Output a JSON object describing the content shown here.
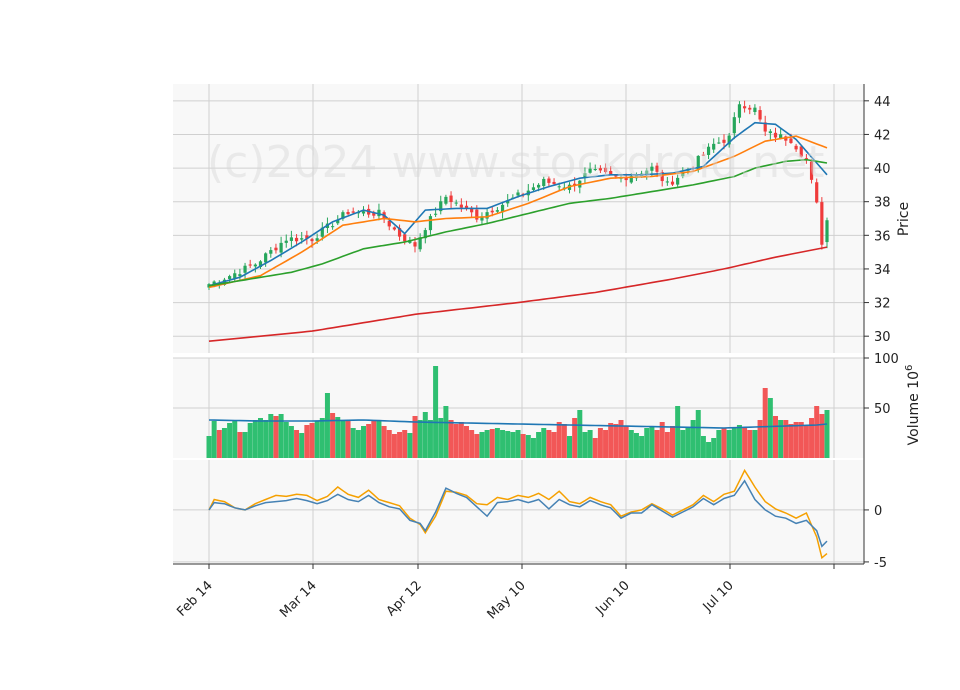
{
  "watermark": "(c)2024 www.stockdroid.net",
  "chart_data": {
    "type": "candlestick",
    "x_ticks": [
      "Feb 14",
      "Mar 14",
      "Apr 12",
      "May 10",
      "Jun 10",
      "Jul 10"
    ],
    "price_panel": {
      "ylabel": "Price",
      "ylim": [
        29.0,
        45.0
      ],
      "yticks": [
        30,
        32,
        34,
        36,
        38,
        40,
        42,
        44
      ],
      "anchors": [
        {
          "t": 0,
          "p": 33.1
        },
        {
          "t": 4,
          "p": 33.6
        },
        {
          "t": 9,
          "p": 34.3
        },
        {
          "t": 15,
          "p": 35.8
        },
        {
          "t": 20,
          "p": 35.8
        },
        {
          "t": 27,
          "p": 37.4
        },
        {
          "t": 33,
          "p": 37.3
        },
        {
          "t": 37,
          "p": 36.0
        },
        {
          "t": 40,
          "p": 35.4
        },
        {
          "t": 42,
          "p": 36.5
        },
        {
          "t": 46,
          "p": 38.3
        },
        {
          "t": 52,
          "p": 37.1
        },
        {
          "t": 58,
          "p": 38.0
        },
        {
          "t": 65,
          "p": 39.2
        },
        {
          "t": 70,
          "p": 38.9
        },
        {
          "t": 74,
          "p": 39.8
        },
        {
          "t": 80,
          "p": 39.4
        },
        {
          "t": 86,
          "p": 40.0
        },
        {
          "t": 89,
          "p": 39.0
        },
        {
          "t": 94,
          "p": 40.2
        },
        {
          "t": 98,
          "p": 41.4
        },
        {
          "t": 101,
          "p": 41.8
        },
        {
          "t": 103,
          "p": 43.9
        },
        {
          "t": 106,
          "p": 43.5
        },
        {
          "t": 108,
          "p": 42.1
        },
        {
          "t": 113,
          "p": 41.7
        },
        {
          "t": 116,
          "p": 40.5
        },
        {
          "t": 118,
          "p": 37.8
        },
        {
          "t": 119,
          "p": 35.6
        },
        {
          "t": 120,
          "p": 36.9
        }
      ],
      "moving_averages": [
        {
          "color": "#1f77b4",
          "points": [
            [
              0,
              33.0
            ],
            [
              6,
              33.5
            ],
            [
              12,
              34.5
            ],
            [
              18,
              35.6
            ],
            [
              24,
              36.8
            ],
            [
              30,
              37.5
            ],
            [
              34,
              37.2
            ],
            [
              38,
              36.1
            ],
            [
              42,
              37.5
            ],
            [
              48,
              37.6
            ],
            [
              54,
              37.6
            ],
            [
              60,
              38.3
            ],
            [
              66,
              38.9
            ],
            [
              72,
              39.4
            ],
            [
              78,
              39.6
            ],
            [
              84,
              39.6
            ],
            [
              90,
              39.7
            ],
            [
              96,
              40.1
            ],
            [
              102,
              41.8
            ],
            [
              106,
              42.7
            ],
            [
              110,
              42.6
            ],
            [
              114,
              41.7
            ],
            [
              118,
              40.3
            ],
            [
              120,
              39.6
            ]
          ]
        },
        {
          "color": "#ff7f0e",
          "points": [
            [
              0,
              32.9
            ],
            [
              10,
              33.6
            ],
            [
              18,
              35.0
            ],
            [
              26,
              36.6
            ],
            [
              34,
              37.0
            ],
            [
              40,
              36.8
            ],
            [
              46,
              37.0
            ],
            [
              54,
              37.1
            ],
            [
              62,
              37.9
            ],
            [
              70,
              38.9
            ],
            [
              78,
              39.4
            ],
            [
              86,
              39.5
            ],
            [
              94,
              39.8
            ],
            [
              102,
              40.7
            ],
            [
              108,
              41.6
            ],
            [
              114,
              41.9
            ],
            [
              120,
              41.2
            ]
          ]
        },
        {
          "color": "#2ca02c",
          "points": [
            [
              0,
              33.0
            ],
            [
              8,
              33.4
            ],
            [
              16,
              33.8
            ],
            [
              22,
              34.3
            ],
            [
              30,
              35.2
            ],
            [
              38,
              35.6
            ],
            [
              46,
              36.2
            ],
            [
              54,
              36.7
            ],
            [
              62,
              37.3
            ],
            [
              70,
              37.9
            ],
            [
              78,
              38.2
            ],
            [
              86,
              38.6
            ],
            [
              94,
              39.0
            ],
            [
              102,
              39.5
            ],
            [
              106,
              40.0
            ],
            [
              112,
              40.4
            ],
            [
              116,
              40.5
            ],
            [
              120,
              40.3
            ]
          ]
        },
        {
          "color": "#d62728",
          "points": [
            [
              0,
              29.7
            ],
            [
              20,
              30.3
            ],
            [
              40,
              31.3
            ],
            [
              60,
              32.0
            ],
            [
              75,
              32.6
            ],
            [
              90,
              33.4
            ],
            [
              100,
              34.0
            ],
            [
              110,
              34.7
            ],
            [
              120,
              35.3
            ]
          ]
        }
      ]
    },
    "volume_panel": {
      "ylabel": "Volume  10^6",
      "ylim": [
        0,
        100
      ],
      "yticks": [
        50,
        100
      ],
      "volumes": [
        22,
        37,
        28,
        30,
        35,
        38,
        26,
        26,
        35,
        38,
        40,
        38,
        44,
        42,
        44,
        36,
        32,
        28,
        25,
        33,
        35,
        37,
        40,
        65,
        45,
        41,
        37,
        37,
        30,
        28,
        32,
        34,
        38,
        37,
        32,
        28,
        24,
        26,
        28,
        25,
        42,
        38,
        46,
        38,
        92,
        40,
        52,
        38,
        34,
        36,
        32,
        28,
        24,
        26,
        28,
        29,
        30,
        28,
        27,
        26,
        28,
        24,
        23,
        20,
        26,
        30,
        28,
        26,
        36,
        34,
        22,
        40,
        48,
        26,
        28,
        20,
        30,
        28,
        35,
        34,
        38,
        32,
        28,
        25,
        22,
        30,
        32,
        28,
        36,
        26,
        32,
        52,
        28,
        30,
        38,
        48,
        22,
        16,
        20,
        28,
        30,
        28,
        31,
        33,
        30,
        28,
        28,
        38,
        70,
        60,
        42,
        38,
        38,
        34,
        36,
        36,
        32,
        40,
        52,
        44,
        48,
        60,
        70,
        70,
        70,
        25
      ],
      "volume_ma": {
        "color": "#1f77b4",
        "points": [
          [
            0,
            38
          ],
          [
            10,
            37
          ],
          [
            20,
            37
          ],
          [
            30,
            38
          ],
          [
            40,
            36
          ],
          [
            50,
            35
          ],
          [
            60,
            34
          ],
          [
            70,
            33
          ],
          [
            80,
            32
          ],
          [
            90,
            31
          ],
          [
            100,
            30
          ],
          [
            106,
            31
          ],
          [
            112,
            32
          ],
          [
            118,
            33
          ],
          [
            120,
            34
          ]
        ]
      }
    },
    "oscillator_panel": {
      "yticks": [
        -5,
        0
      ],
      "ylim": [
        -5.2,
        4.8
      ],
      "lines": [
        {
          "color": "#f5a000",
          "points": [
            [
              0,
              0.0
            ],
            [
              1,
              1.0
            ],
            [
              3,
              0.8
            ],
            [
              5,
              0.2
            ],
            [
              7,
              0.0
            ],
            [
              9,
              0.6
            ],
            [
              11,
              1.0
            ],
            [
              13,
              1.4
            ],
            [
              15,
              1.3
            ],
            [
              17,
              1.5
            ],
            [
              19,
              1.4
            ],
            [
              21,
              0.9
            ],
            [
              23,
              1.3
            ],
            [
              25,
              2.2
            ],
            [
              27,
              1.5
            ],
            [
              29,
              1.2
            ],
            [
              31,
              1.9
            ],
            [
              33,
              1.0
            ],
            [
              35,
              0.7
            ],
            [
              37,
              0.4
            ],
            [
              39,
              -0.8
            ],
            [
              41,
              -1.4
            ],
            [
              42,
              -2.2
            ],
            [
              44,
              -0.6
            ],
            [
              46,
              1.8
            ],
            [
              48,
              1.7
            ],
            [
              50,
              1.4
            ],
            [
              52,
              0.6
            ],
            [
              54,
              0.5
            ],
            [
              56,
              1.2
            ],
            [
              58,
              1.0
            ],
            [
              60,
              1.4
            ],
            [
              62,
              1.2
            ],
            [
              64,
              1.6
            ],
            [
              66,
              1.0
            ],
            [
              68,
              1.8
            ],
            [
              70,
              0.8
            ],
            [
              72,
              0.6
            ],
            [
              74,
              1.2
            ],
            [
              76,
              0.8
            ],
            [
              78,
              0.5
            ],
            [
              80,
              -0.6
            ],
            [
              82,
              -0.2
            ],
            [
              84,
              0.0
            ],
            [
              86,
              0.6
            ],
            [
              88,
              0.1
            ],
            [
              90,
              -0.5
            ],
            [
              92,
              0.0
            ],
            [
              94,
              0.5
            ],
            [
              96,
              1.4
            ],
            [
              98,
              0.8
            ],
            [
              100,
              1.5
            ],
            [
              102,
              1.8
            ],
            [
              104,
              3.8
            ],
            [
              106,
              2.2
            ],
            [
              108,
              0.8
            ],
            [
              110,
              0.1
            ],
            [
              112,
              -0.3
            ],
            [
              114,
              -0.8
            ],
            [
              116,
              -0.3
            ],
            [
              118,
              -2.6
            ],
            [
              119,
              -4.6
            ],
            [
              120,
              -4.2
            ]
          ]
        },
        {
          "color": "#4682b4",
          "points": [
            [
              0,
              0.0
            ],
            [
              1,
              0.7
            ],
            [
              3,
              0.6
            ],
            [
              5,
              0.2
            ],
            [
              7,
              0.0
            ],
            [
              9,
              0.4
            ],
            [
              11,
              0.7
            ],
            [
              13,
              0.8
            ],
            [
              15,
              0.9
            ],
            [
              17,
              1.1
            ],
            [
              19,
              0.9
            ],
            [
              21,
              0.6
            ],
            [
              23,
              0.9
            ],
            [
              25,
              1.5
            ],
            [
              27,
              1.0
            ],
            [
              29,
              0.8
            ],
            [
              31,
              1.4
            ],
            [
              33,
              0.7
            ],
            [
              35,
              0.3
            ],
            [
              37,
              0.1
            ],
            [
              39,
              -1.0
            ],
            [
              41,
              -1.3
            ],
            [
              42,
              -2.0
            ],
            [
              44,
              -0.2
            ],
            [
              46,
              2.1
            ],
            [
              48,
              1.6
            ],
            [
              50,
              1.2
            ],
            [
              52,
              0.3
            ],
            [
              54,
              -0.6
            ],
            [
              56,
              0.7
            ],
            [
              58,
              0.8
            ],
            [
              60,
              1.0
            ],
            [
              62,
              0.7
            ],
            [
              64,
              1.0
            ],
            [
              66,
              0.1
            ],
            [
              68,
              1.0
            ],
            [
              70,
              0.5
            ],
            [
              72,
              0.3
            ],
            [
              74,
              0.9
            ],
            [
              76,
              0.5
            ],
            [
              78,
              0.2
            ],
            [
              80,
              -0.8
            ],
            [
              82,
              -0.3
            ],
            [
              84,
              -0.3
            ],
            [
              86,
              0.5
            ],
            [
              88,
              -0.1
            ],
            [
              90,
              -0.7
            ],
            [
              92,
              -0.2
            ],
            [
              94,
              0.3
            ],
            [
              96,
              1.1
            ],
            [
              98,
              0.5
            ],
            [
              100,
              1.1
            ],
            [
              102,
              1.4
            ],
            [
              104,
              2.8
            ],
            [
              106,
              1.0
            ],
            [
              108,
              0.0
            ],
            [
              110,
              -0.6
            ],
            [
              112,
              -0.8
            ],
            [
              114,
              -1.3
            ],
            [
              116,
              -1.0
            ],
            [
              118,
              -2.0
            ],
            [
              119,
              -3.5
            ],
            [
              120,
              -3.0
            ]
          ]
        }
      ]
    }
  },
  "colors": {
    "up": "#26a65b",
    "down": "#ef3b3b",
    "up_volume": "#2fbf71",
    "down_volume": "#f25757"
  }
}
